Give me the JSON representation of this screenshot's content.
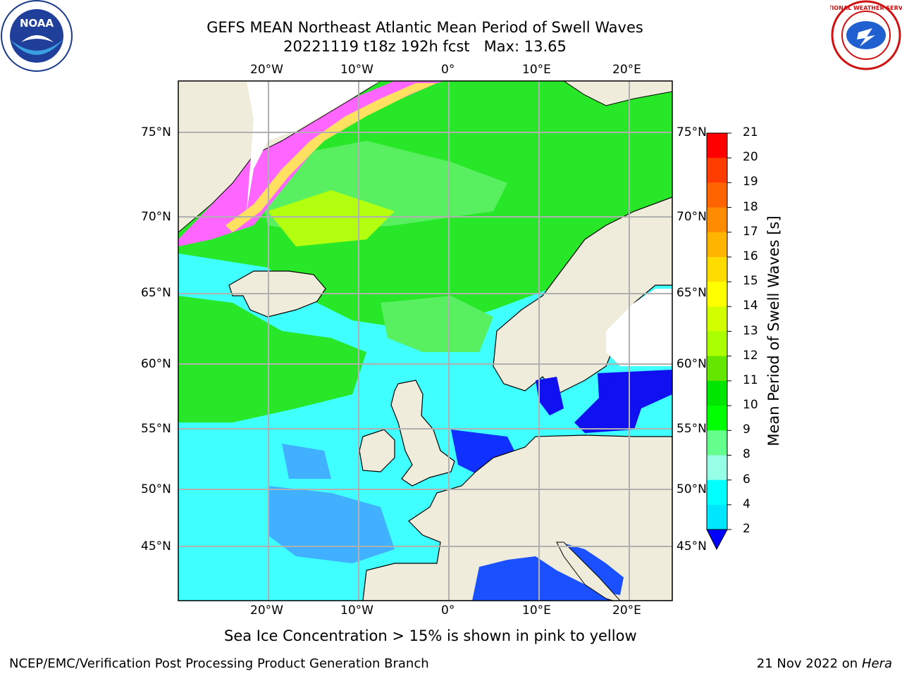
{
  "header": {
    "title_line1": "GEFS MEAN Northeast Atlantic Mean Period of Swell Waves",
    "title_line2": "20221119 t18z 192h fcst   Max: 13.65"
  },
  "logos": {
    "left": "NOAA",
    "right": "NATIONAL WEATHER SERVICE"
  },
  "map": {
    "lon_labels": [
      "20°W",
      "10°W",
      "0°",
      "10°E",
      "20°E"
    ],
    "lat_labels": [
      "75°N",
      "70°N",
      "65°N",
      "60°N",
      "55°N",
      "50°N",
      "45°N"
    ],
    "colors": {
      "land": "#efecdc",
      "ice": "#ffffff",
      "grid": "#b0b0b0"
    }
  },
  "colorbar": {
    "label": "Mean Period of Swell Waves [s]",
    "ticks": [
      "21",
      "20",
      "19",
      "18",
      "17",
      "16",
      "15",
      "14",
      "13",
      "12",
      "11",
      "10",
      "9",
      "8",
      "6",
      "4",
      "2"
    ],
    "colors": [
      "#ff0000",
      "#ff3c00",
      "#ff6400",
      "#ff8c00",
      "#ffb400",
      "#ffdc00",
      "#ffff00",
      "#d2ff00",
      "#aaff00",
      "#64e600",
      "#00e600",
      "#00ff00",
      "#64ff8c",
      "#96ffe6",
      "#00ffff",
      "#00e6ff",
      "#0080ff",
      "#0000ff"
    ]
  },
  "notes": {
    "sea_ice": "Sea Ice Concentration > 15% is shown in pink to yellow"
  },
  "footer": {
    "left": "NCEP/EMC/Verification Post Processing Product Generation Branch",
    "date": "21 Nov 2022 on",
    "machine": "Hera"
  }
}
